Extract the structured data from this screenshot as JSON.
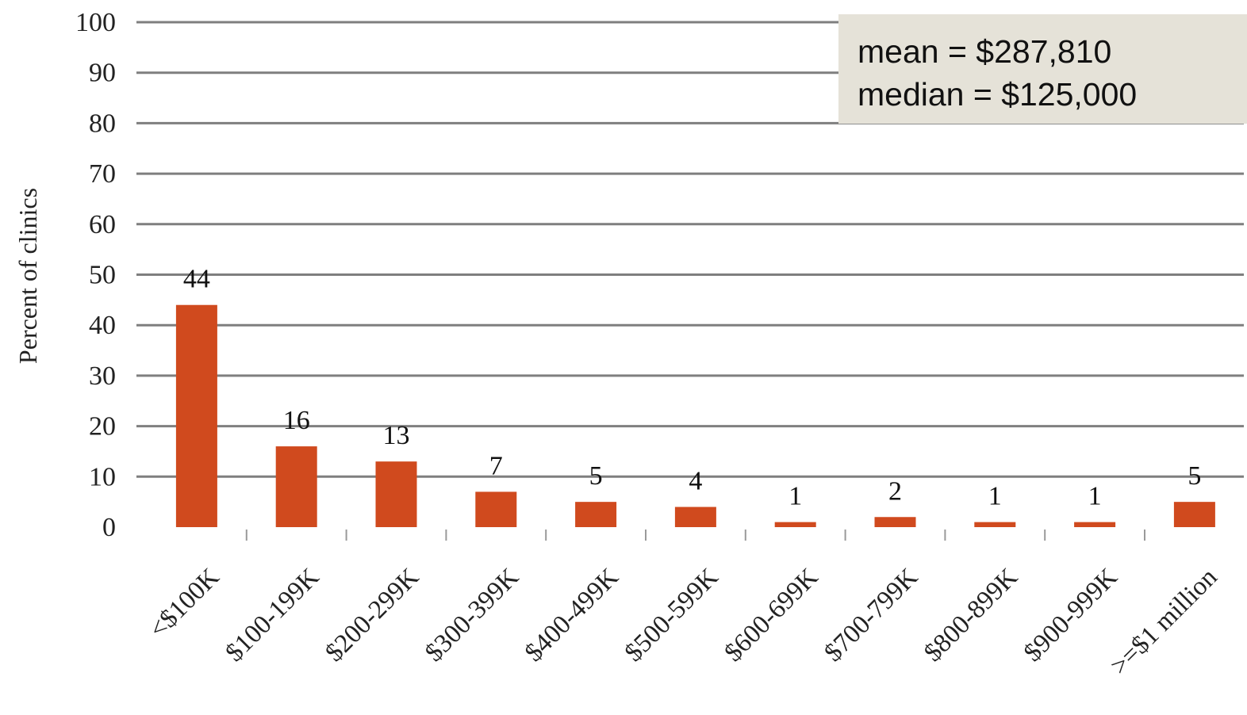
{
  "chart_data": {
    "type": "bar",
    "title": "",
    "xlabel": "",
    "ylabel": "Percent of clinics",
    "ylim": [
      0,
      100
    ],
    "yticks": [
      "0",
      "10",
      "20",
      "30",
      "40",
      "50",
      "60",
      "70",
      "80",
      "90",
      "100"
    ],
    "categories": [
      "<$100K",
      "$100-199K",
      "$200-299K",
      "$300-399K",
      "$400-499K",
      "$500-599K",
      "$600-699K",
      "$700-799K",
      "$800-899K",
      "$900-999K",
      ">=$1 million"
    ],
    "values": [
      44,
      16,
      13,
      7,
      5,
      4,
      1,
      2,
      1,
      1,
      5
    ],
    "data_labels": [
      "44",
      "16",
      "13",
      "7",
      "5",
      "4",
      "1",
      "2",
      "1",
      "1",
      "5"
    ],
    "bar_color": "#d04a1e",
    "gridline_color": "#7f7f7f",
    "grid": true
  },
  "annotation": {
    "mean_label": "mean = ",
    "mean_value": "$287,810",
    "median_label": "median = ",
    "median_value": "$125,000",
    "background": "#e5e2d8"
  }
}
